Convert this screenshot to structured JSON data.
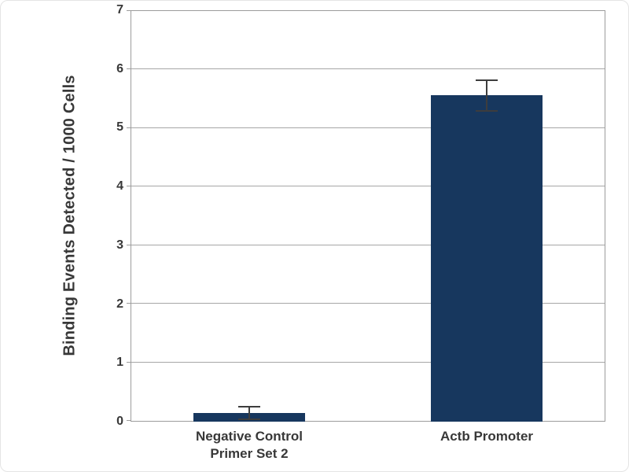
{
  "chart_data": {
    "type": "bar",
    "title": "",
    "ylabel": "Binding Events Detected / 1000 Cells",
    "xlabel": "",
    "categories": [
      "Negative Control\nPrimer Set 2",
      "Actb Promoter"
    ],
    "values": [
      0.15,
      5.55
    ],
    "error_bars": [
      0.12,
      0.27
    ],
    "ylim": [
      0,
      7
    ],
    "yticks": [
      0,
      1,
      2,
      3,
      4,
      5,
      6,
      7
    ],
    "grid": true,
    "legend": false,
    "bar_color": "#17375e",
    "gridline_color": "#a6a6a6",
    "axis_color": "#9c9c9c",
    "error_bar_color": "#3d3d3d",
    "text_color": "#383838"
  }
}
